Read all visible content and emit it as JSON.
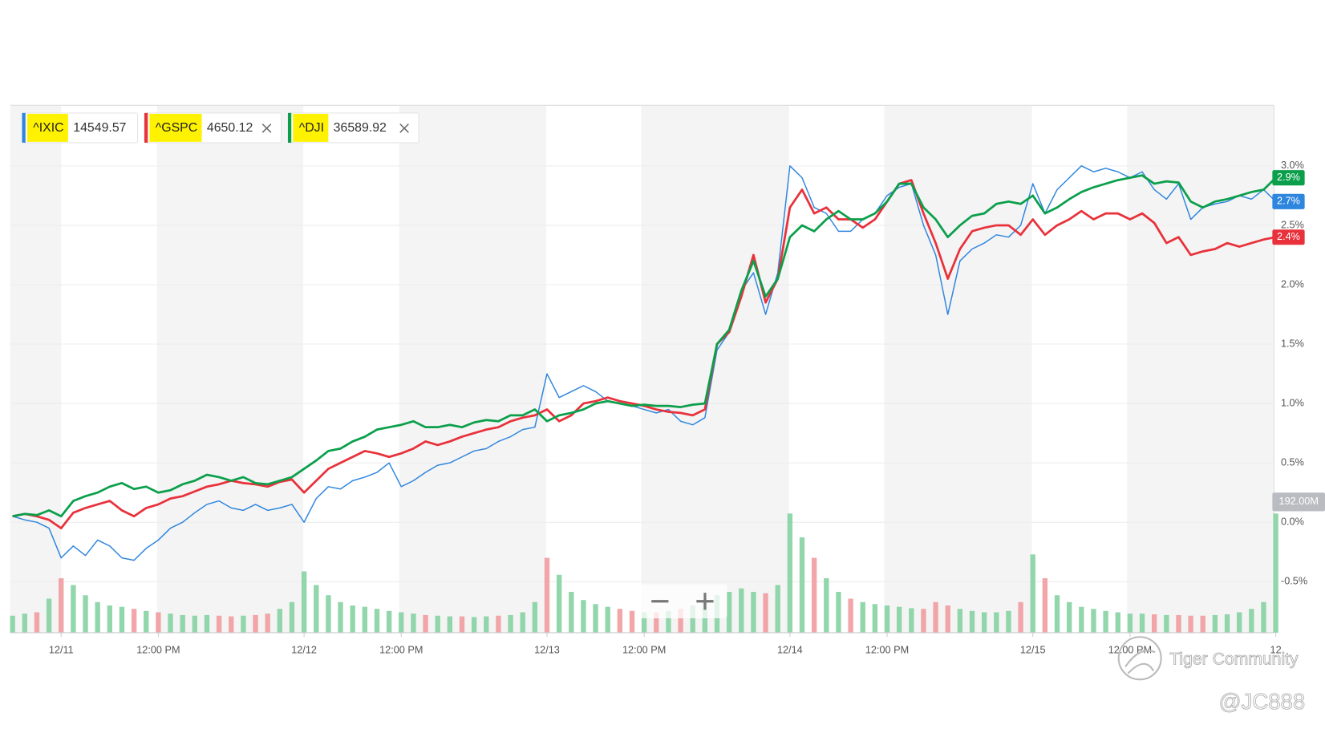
{
  "chart_data": {
    "type": "line",
    "categories": [
      null,
      null,
      null,
      null,
      "12/11",
      null,
      null,
      null,
      null,
      null,
      null,
      null,
      "12:00 PM",
      null,
      null,
      null,
      null,
      null,
      null,
      null,
      null,
      null,
      null,
      null,
      "12/12",
      null,
      null,
      null,
      null,
      null,
      null,
      null,
      "12:00 PM",
      null,
      null,
      null,
      null,
      null,
      null,
      null,
      null,
      null,
      null,
      null,
      "12/13",
      null,
      null,
      null,
      null,
      null,
      null,
      null,
      "12:00 PM",
      null,
      null,
      null,
      null,
      null,
      null,
      null,
      null,
      null,
      null,
      null,
      "12/14",
      null,
      null,
      null,
      null,
      null,
      null,
      null,
      "12:00 PM",
      null,
      null,
      null,
      null,
      null,
      null,
      null,
      null,
      null,
      null,
      null,
      "12/15",
      null,
      null,
      null,
      null,
      null,
      null,
      null,
      "12:00 PM",
      null,
      null,
      null,
      null,
      null,
      null,
      null,
      null,
      null,
      null,
      null,
      "12"
    ],
    "series": [
      {
        "name": "^IXIC",
        "quote": 14549.57,
        "color": "#2f86de",
        "last_label": "2.7%",
        "values": [
          0.05,
          0.02,
          0.0,
          -0.05,
          -0.3,
          -0.2,
          -0.28,
          -0.15,
          -0.2,
          -0.3,
          -0.32,
          -0.22,
          -0.15,
          -0.05,
          0.0,
          0.08,
          0.15,
          0.18,
          0.12,
          0.1,
          0.15,
          0.1,
          0.12,
          0.15,
          0.0,
          0.2,
          0.3,
          0.28,
          0.35,
          0.38,
          0.42,
          0.5,
          0.3,
          0.35,
          0.42,
          0.48,
          0.5,
          0.55,
          0.6,
          0.62,
          0.68,
          0.72,
          0.78,
          0.8,
          1.25,
          1.05,
          1.1,
          1.15,
          1.1,
          1.02,
          1.0,
          0.98,
          0.95,
          0.92,
          0.95,
          0.85,
          0.82,
          0.88,
          1.45,
          1.6,
          1.95,
          2.1,
          1.75,
          2.1,
          3.0,
          2.9,
          2.65,
          2.6,
          2.45,
          2.45,
          2.55,
          2.6,
          2.75,
          2.82,
          2.85,
          2.5,
          2.25,
          1.75,
          2.2,
          2.3,
          2.35,
          2.42,
          2.4,
          2.5,
          2.85,
          2.6,
          2.8,
          2.9,
          3.0,
          2.95,
          2.98,
          2.95,
          2.9,
          2.95,
          2.8,
          2.72,
          2.85,
          2.55,
          2.65,
          2.68,
          2.7,
          2.75,
          2.72,
          2.8,
          2.7
        ]
      },
      {
        "name": "^GSPC",
        "quote": 4650.12,
        "color": "#e8313b",
        "last_label": "2.4%",
        "values": [
          0.05,
          0.07,
          0.05,
          0.02,
          -0.05,
          0.08,
          0.12,
          0.15,
          0.18,
          0.1,
          0.05,
          0.12,
          0.15,
          0.2,
          0.22,
          0.26,
          0.3,
          0.32,
          0.35,
          0.33,
          0.32,
          0.3,
          0.34,
          0.36,
          0.25,
          0.35,
          0.45,
          0.5,
          0.55,
          0.6,
          0.58,
          0.55,
          0.58,
          0.62,
          0.68,
          0.65,
          0.68,
          0.72,
          0.75,
          0.78,
          0.8,
          0.85,
          0.88,
          0.9,
          0.95,
          0.85,
          0.9,
          1.0,
          1.02,
          1.05,
          1.02,
          1.0,
          0.98,
          0.95,
          0.93,
          0.92,
          0.9,
          0.95,
          1.5,
          1.6,
          1.9,
          2.25,
          1.85,
          2.05,
          2.65,
          2.8,
          2.6,
          2.65,
          2.55,
          2.55,
          2.48,
          2.55,
          2.7,
          2.85,
          2.88,
          2.6,
          2.35,
          2.05,
          2.3,
          2.45,
          2.48,
          2.5,
          2.5,
          2.42,
          2.55,
          2.42,
          2.5,
          2.55,
          2.62,
          2.55,
          2.6,
          2.6,
          2.55,
          2.6,
          2.52,
          2.35,
          2.4,
          2.25,
          2.28,
          2.3,
          2.35,
          2.32,
          2.35,
          2.38,
          2.4
        ]
      },
      {
        "name": "^DJI",
        "quote": 36589.92,
        "color": "#0b9f4b",
        "last_label": "2.9%",
        "values": [
          0.05,
          0.07,
          0.06,
          0.1,
          0.05,
          0.18,
          0.22,
          0.25,
          0.3,
          0.33,
          0.28,
          0.3,
          0.25,
          0.27,
          0.32,
          0.35,
          0.4,
          0.38,
          0.35,
          0.38,
          0.33,
          0.32,
          0.35,
          0.38,
          0.45,
          0.52,
          0.6,
          0.62,
          0.68,
          0.72,
          0.78,
          0.8,
          0.82,
          0.85,
          0.8,
          0.8,
          0.82,
          0.8,
          0.84,
          0.86,
          0.85,
          0.9,
          0.9,
          0.95,
          0.85,
          0.9,
          0.92,
          0.95,
          1.0,
          1.02,
          1.0,
          0.98,
          0.99,
          0.98,
          0.98,
          0.97,
          0.99,
          1.0,
          1.5,
          1.62,
          1.95,
          2.2,
          1.9,
          2.05,
          2.4,
          2.5,
          2.45,
          2.55,
          2.62,
          2.55,
          2.55,
          2.6,
          2.7,
          2.85,
          2.85,
          2.65,
          2.55,
          2.4,
          2.5,
          2.58,
          2.6,
          2.68,
          2.7,
          2.68,
          2.75,
          2.6,
          2.65,
          2.72,
          2.78,
          2.82,
          2.85,
          2.88,
          2.9,
          2.92,
          2.85,
          2.87,
          2.86,
          2.7,
          2.65,
          2.7,
          2.72,
          2.75,
          2.78,
          2.8,
          2.9
        ]
      }
    ],
    "ylim": [
      -0.93,
      3.51
    ],
    "yticks": [
      {
        "value": -0.5,
        "label": "-0.5%"
      },
      {
        "value": 0.0,
        "label": "0.0%"
      },
      {
        "value": 0.5,
        "label": "0.5%"
      },
      {
        "value": 1.0,
        "label": "1.0%"
      },
      {
        "value": 1.5,
        "label": "1.5%"
      },
      {
        "value": 2.0,
        "label": "2.0%"
      },
      {
        "value": 2.5,
        "label": "2.5%"
      },
      {
        "value": 3.0,
        "label": "3.0%"
      }
    ],
    "grid": true,
    "volume": {
      "up_color": "#7fcf9c",
      "down_color": "#f0969a",
      "max": {
        "value": 192,
        "label": "192.00M"
      },
      "values": [
        25,
        28,
        30,
        50,
        80,
        70,
        55,
        45,
        40,
        38,
        35,
        32,
        30,
        28,
        26,
        25,
        26,
        25,
        24,
        25,
        26,
        28,
        35,
        45,
        90,
        70,
        55,
        45,
        40,
        38,
        35,
        32,
        30,
        28,
        26,
        25,
        24,
        24,
        23,
        24,
        25,
        26,
        30,
        45,
        110,
        85,
        60,
        48,
        42,
        38,
        35,
        32,
        30,
        30,
        32,
        35,
        40,
        45,
        55,
        60,
        65,
        60,
        58,
        70,
        175,
        140,
        110,
        80,
        60,
        50,
        45,
        42,
        40,
        38,
        36,
        35,
        45,
        40,
        35,
        32,
        30,
        30,
        32,
        45,
        115,
        80,
        55,
        45,
        38,
        35,
        32,
        30,
        28,
        28,
        27,
        26,
        26,
        25,
        25,
        26,
        27,
        30,
        35,
        45,
        175
      ]
    }
  },
  "watermark": {
    "brand": "Tiger Community",
    "user": "@JC888"
  }
}
